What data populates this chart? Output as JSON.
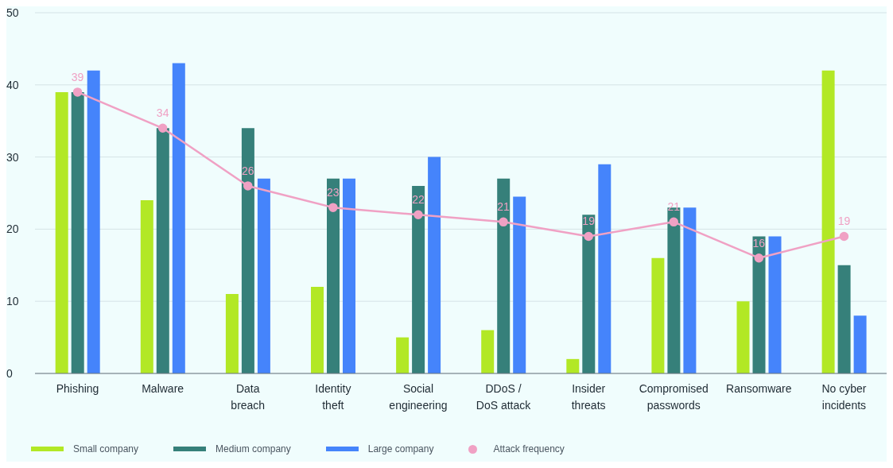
{
  "chart_data": {
    "type": "bar",
    "categories": [
      "Phishing",
      "Malware",
      "Data breach",
      "Identity theft",
      "Social engineering",
      "DDoS / DoS attack",
      "Insider threats",
      "Compromised passwords",
      "Ransomware",
      "No cyber incidents"
    ],
    "series": [
      {
        "name": "Small company",
        "color": "#b2e825",
        "values": [
          39,
          24,
          11,
          12,
          5,
          6,
          2,
          16,
          10,
          42
        ]
      },
      {
        "name": "Medium company",
        "color": "#36807a",
        "values": [
          39,
          34,
          34,
          27,
          26,
          27,
          22,
          23,
          19,
          15
        ]
      },
      {
        "name": "Large company",
        "color": "#4584fb",
        "values": [
          42,
          43,
          27,
          27,
          30,
          24.5,
          29,
          23,
          19,
          8
        ]
      },
      {
        "name": "Attack frequency",
        "type": "line",
        "color": "#f0a1c4",
        "values": [
          39,
          34,
          26,
          23,
          22,
          21,
          19,
          21,
          16,
          19
        ],
        "value_labels": [
          "39",
          "34",
          "26",
          "23",
          "22",
          "21",
          "19",
          "21",
          "16",
          "19"
        ],
        "marker": "circle"
      }
    ],
    "ylim": [
      0,
      50
    ],
    "yticks": [
      0,
      10,
      20,
      30,
      40,
      50
    ],
    "grid": "y",
    "legend": "bottom left"
  }
}
